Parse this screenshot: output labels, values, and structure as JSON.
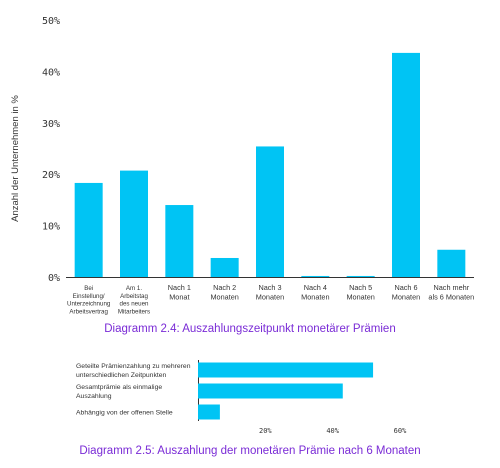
{
  "colors": {
    "bar": "#00c4f4",
    "axis": "#333333",
    "gridline": "#dddddd",
    "caption": "#7a2bd6",
    "text": "#333333"
  },
  "chart_data": [
    {
      "type": "bar",
      "title": "Diagramm 2.4: Auszahlungszeitpunkt monetärer Prämien",
      "ylabel": "Anzahl der Unternehmen in %",
      "xlabel": "",
      "ylim": [
        0,
        50
      ],
      "yticks": [
        "0%",
        "10%",
        "20%",
        "30%",
        "40%",
        "50%"
      ],
      "categories": [
        "Bei Einstellung/ Unterzeichnung Arbeitsvertrag",
        "Am 1. Arbeitstag des neuen Mitarbeiters",
        "Nach 1 Monat",
        "Nach 2 Monaten",
        "Nach 3 Monaten",
        "Nach 4 Monaten",
        "Nach 5 Monaten",
        "Nach 6 Monaten",
        "Nach mehr als 6 Monaten"
      ],
      "category_lines": [
        [
          "Bei",
          "Einstellung/",
          "Unterzeichnung",
          "Arbeitsvertrag"
        ],
        [
          "Am 1.",
          "Arbeitstag",
          "des neuen",
          "Mitarbeiters"
        ],
        [
          "Nach 1",
          "Monat"
        ],
        [
          "Nach 2",
          "Monaten"
        ],
        [
          "Nach 3",
          "Monaten"
        ],
        [
          "Nach 4",
          "Monaten"
        ],
        [
          "Nach 5",
          "Monaten"
        ],
        [
          "Nach 6",
          "Monaten"
        ],
        [
          "Nach mehr",
          "als 6 Monaten"
        ]
      ],
      "values": [
        18.3,
        20.7,
        14.0,
        3.7,
        25.4,
        0.2,
        0.2,
        43.6,
        5.3
      ]
    },
    {
      "type": "bar",
      "orientation": "horizontal",
      "title": "Diagramm 2.5: Auszahlung der monetären Prämie nach 6 Monaten",
      "xlim": [
        0,
        60
      ],
      "xticks": [
        "20%",
        "40%",
        "60%"
      ],
      "categories": [
        "Geteilte Prämienzahlung zu mehreren unterschiedlichen Zeitpunkten",
        "Gesamtprämie als einmalige Auszahlung",
        "Abhängig von der offenen Stelle"
      ],
      "category_lines": [
        [
          "Geteilte Prämienzahlung zu mehreren",
          "unterschiedlichen Zeitpunkten"
        ],
        [
          "Gesamtprämie als einmalige",
          "Auszahlung"
        ],
        [
          "Abhängig von der offenen Stelle"
        ]
      ],
      "values": [
        52,
        43,
        6.5
      ]
    }
  ]
}
